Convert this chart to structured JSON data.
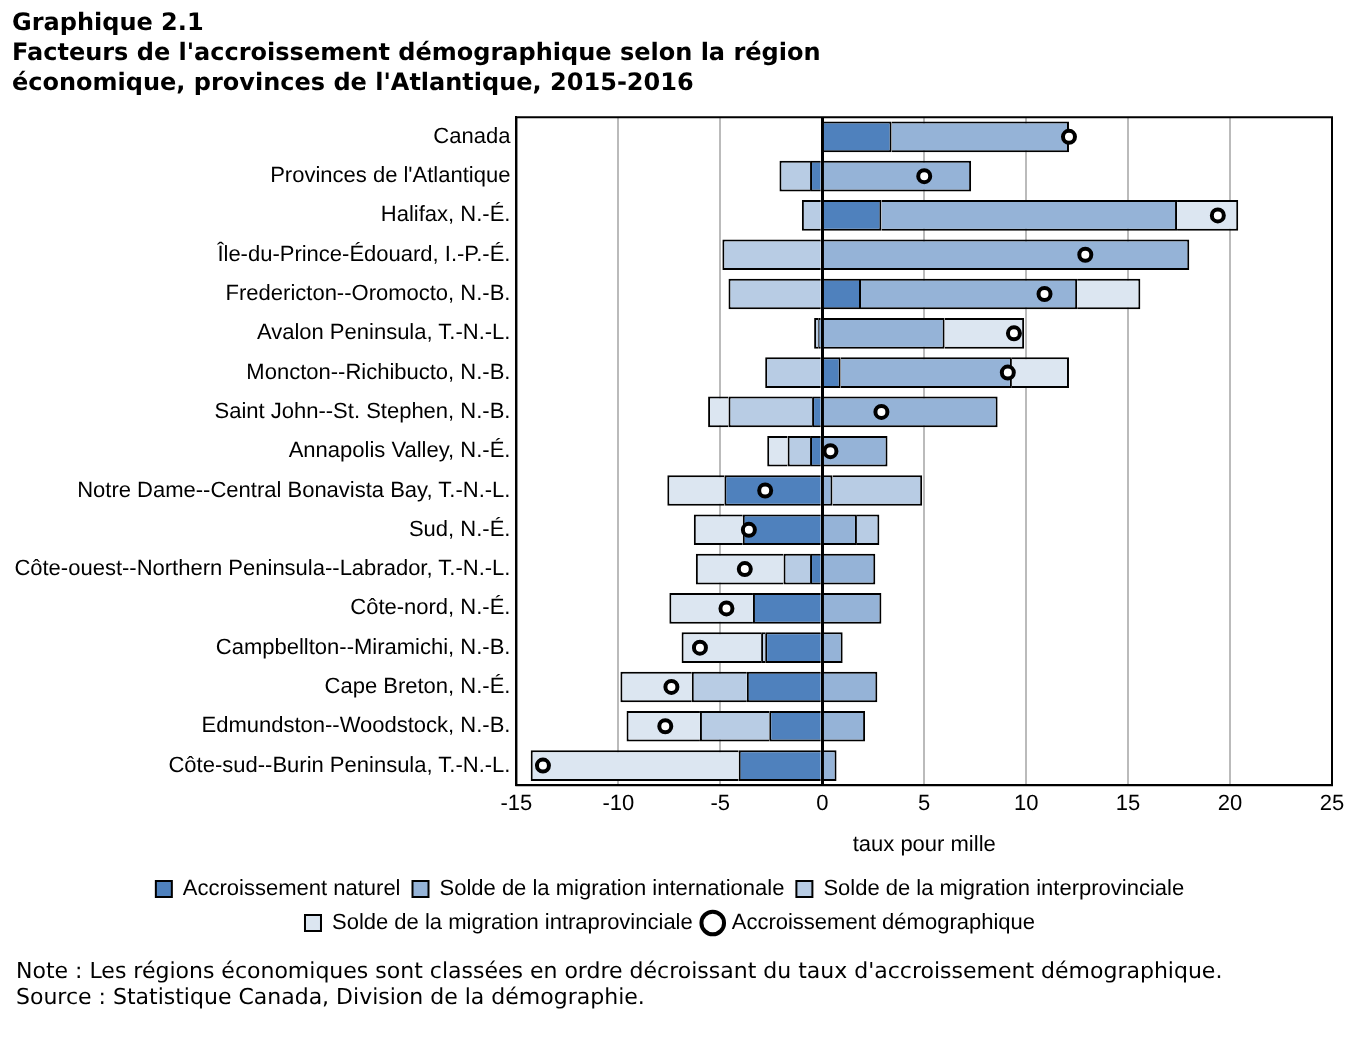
{
  "chart_data": {
    "type": "bar",
    "orientation": "horizontal",
    "stacked": true,
    "title": "Graphique  2.1",
    "subtitle": "Facteurs de l'accroissement démographique  selon la région économique, provinces de l'Atlantique,  2015-2016",
    "xlabel": "taux pour mille",
    "categories": [
      "Canada",
      "Provinces de l'Atlantique",
      "Halifax, N.-É.",
      "Île-du-Prince-Édouard, I.-P.-É.",
      "Fredericton--Oromocto, N.-B.",
      "Avalon Peninsula, T.-N.-L.",
      "Moncton--Richibucto, N.-B.",
      "Saint John--St. Stephen, N.-B.",
      "Annapolis Valley, N.-É.",
      "Notre Dame--Central Bonavista Bay, T.-N.-L.",
      "Sud, N.-É.",
      "Côte-ouest--Northern Peninsula--Labrador, T.-N.-L.",
      "Côte-nord, N.-É.",
      "Campbellton--Miramichi, N.-B.",
      "Cape Breton, N.-É.",
      "Edmundston--Woodstock, N.-B.",
      "Côte-sud--Burin Peninsula, T.-N.-L."
    ],
    "series": [
      {
        "name": "Accroissement naturel",
        "color": "#4f81bd",
        "values": [
          3.4,
          -0.6,
          2.9,
          0,
          1.9,
          -0.2,
          0.9,
          -0.5,
          -0.6,
          -4.8,
          -3.9,
          -0.6,
          -3.4,
          -2.8,
          -3.7,
          -2.6,
          -4.1
        ]
      },
      {
        "name": "Solde de la migration internationale",
        "color": "#95b3d7",
        "values": [
          8.7,
          7.3,
          14.5,
          18.0,
          10.6,
          6.0,
          8.4,
          8.6,
          3.2,
          0.5,
          1.7,
          2.6,
          2.9,
          1.0,
          2.7,
          2.1,
          0.7
        ]
      },
      {
        "name": "Solde de la migration interprovinciale",
        "color": "#b8cce4",
        "values": [
          0,
          -1.5,
          -1.0,
          -4.9,
          -4.6,
          -0.2,
          -2.8,
          -4.1,
          -1.1,
          4.4,
          1.1,
          -1.3,
          0,
          -0.2,
          -2.7,
          -3.4,
          0
        ]
      },
      {
        "name": "Solde de la migration intraprovinciale",
        "color": "#dce6f1",
        "values": [
          0,
          0,
          3.0,
          0,
          3.1,
          3.9,
          2.8,
          -1.0,
          -1.0,
          -2.8,
          -2.4,
          -4.3,
          -4.1,
          -3.9,
          -3.5,
          -3.6,
          -10.2
        ]
      },
      {
        "name": "Accroissement démographique",
        "type": "scatter",
        "color": "#000000",
        "marker": "circle",
        "values": [
          12.1,
          5.0,
          19.4,
          12.9,
          10.9,
          9.4,
          9.1,
          2.9,
          0.4,
          -2.8,
          -3.6,
          -3.8,
          -4.7,
          -6.0,
          -7.4,
          -7.7,
          -13.7
        ]
      }
    ],
    "xlim": [
      -15,
      25
    ],
    "xticks": [
      -15,
      -10,
      -5,
      0,
      5,
      10,
      15,
      20,
      25
    ],
    "grid": "x",
    "legend": "bottom",
    "annotations": [
      "Note : Les régions économiques sont classées en ordre décroissant du taux d'accroissement démographique.",
      "Source : Statistique Canada, Division de la démographie."
    ]
  }
}
